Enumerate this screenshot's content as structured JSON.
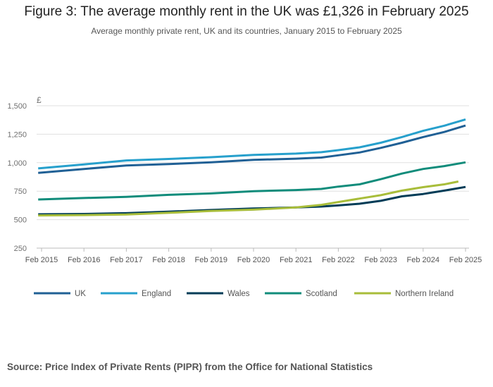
{
  "chart_data": {
    "type": "line",
    "title": "Figure 3: The average monthly rent in the UK was £1,326 in February 2025",
    "subtitle": "Average monthly private rent, UK and its countries, January 2015 to February 2025",
    "ylabel": "£",
    "ylim": [
      250,
      1500
    ],
    "yticks": [
      250,
      500,
      750,
      1000,
      1250,
      1500
    ],
    "ytick_labels": [
      "250",
      "500",
      "750",
      "1,000",
      "1,250",
      "1,500"
    ],
    "xlim": [
      2014.92,
      2025.08
    ],
    "xticks": [
      2015,
      2016,
      2017,
      2018,
      2019,
      2020,
      2021,
      2022,
      2023,
      2024,
      2025
    ],
    "xtick_labels": [
      "Feb 2015",
      "Feb 2016",
      "Feb 2017",
      "Feb 2018",
      "Feb 2019",
      "Feb 2020",
      "Feb 2021",
      "Feb 2022",
      "Feb 2023",
      "Feb 2024",
      "Feb 2025"
    ],
    "grid": true,
    "legend_position": "bottom",
    "series": [
      {
        "name": "UK",
        "color": "#206095",
        "x": [
          2014.92,
          2016,
          2017,
          2018,
          2019,
          2020,
          2021,
          2021.6,
          2022,
          2022.5,
          2023,
          2023.5,
          2024,
          2024.5,
          2025
        ],
        "values": [
          910,
          945,
          975,
          988,
          1003,
          1025,
          1035,
          1045,
          1065,
          1090,
          1130,
          1175,
          1225,
          1270,
          1326
        ]
      },
      {
        "name": "England",
        "color": "#27a0cc",
        "x": [
          2014.92,
          2016,
          2017,
          2018,
          2019,
          2020,
          2021,
          2021.6,
          2022,
          2022.5,
          2023,
          2023.5,
          2024,
          2024.5,
          2025
        ],
        "values": [
          950,
          985,
          1020,
          1033,
          1048,
          1068,
          1080,
          1092,
          1110,
          1135,
          1175,
          1225,
          1280,
          1325,
          1380
        ]
      },
      {
        "name": "Wales",
        "color": "#003c57",
        "x": [
          2014.92,
          2016,
          2017,
          2018,
          2019,
          2020,
          2021,
          2021.6,
          2022,
          2022.5,
          2023,
          2023.5,
          2024,
          2024.5,
          2025
        ],
        "values": [
          547,
          550,
          557,
          570,
          585,
          598,
          607,
          615,
          625,
          640,
          665,
          705,
          725,
          755,
          787
        ]
      },
      {
        "name": "Scotland",
        "color": "#118c7b",
        "x": [
          2014.92,
          2016,
          2017,
          2018,
          2019,
          2020,
          2021,
          2021.6,
          2022,
          2022.5,
          2023,
          2023.5,
          2024,
          2024.5,
          2025
        ],
        "values": [
          677,
          690,
          700,
          718,
          730,
          750,
          760,
          770,
          790,
          810,
          855,
          905,
          945,
          970,
          1003
        ]
      },
      {
        "name": "Northern Ireland",
        "color": "#a8bd3a",
        "x": [
          2014.92,
          2016,
          2017,
          2018,
          2019,
          2020,
          2021,
          2021.6,
          2022,
          2022.5,
          2023,
          2023.5,
          2024,
          2024.5,
          2024.83
        ],
        "values": [
          537,
          540,
          545,
          560,
          577,
          588,
          607,
          630,
          655,
          685,
          715,
          755,
          785,
          810,
          835
        ]
      }
    ]
  },
  "source": "Source: Price Index of Private Rents (PIPR) from the Office for National Statistics"
}
